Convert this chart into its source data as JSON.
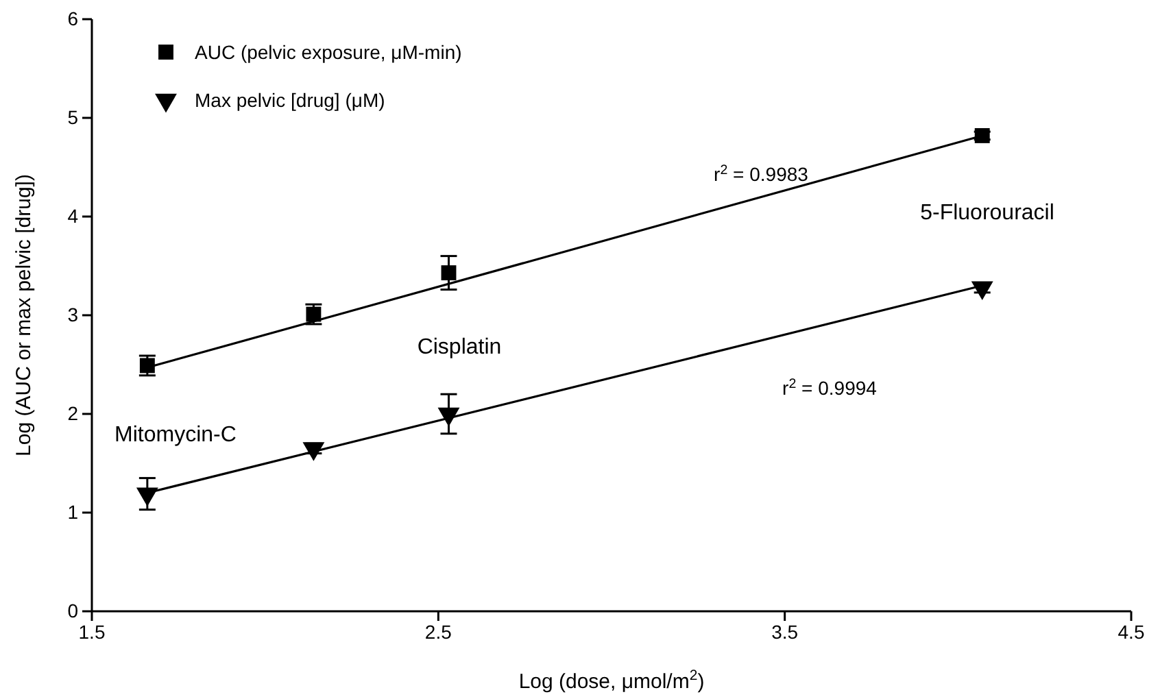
{
  "chart_data": {
    "type": "scatter",
    "xlabel": "Log (dose, μmol/m$^{2}$)",
    "ylabel": "Log (AUC or max pelvic [drug])",
    "xlim": [
      1.5,
      4.5
    ],
    "xticks": [
      1.5,
      2.5,
      3.5,
      4.5
    ],
    "ylim": [
      0,
      6
    ],
    "yticks": [
      0,
      1,
      2,
      3,
      4,
      5,
      6
    ],
    "grid": false,
    "legend": "top left",
    "series": [
      {
        "name": "AUC (pelvic exposure, μM-min)",
        "color": "#000000",
        "marker": "square",
        "x": [
          1.66,
          2.14,
          2.53,
          4.07
        ],
        "values": [
          2.49,
          3.01,
          3.43,
          4.82
        ],
        "errors": [
          0.1,
          0.1,
          0.17,
          0.04
        ]
      },
      {
        "name": "Max pelvic [drug] (μM)",
        "color": "#000000",
        "marker": "triangle",
        "x": [
          1.66,
          2.14,
          2.53,
          4.07
        ],
        "values": [
          1.19,
          1.65,
          2.0,
          3.28
        ],
        "errors": [
          0.16,
          0.05,
          0.2,
          0.05
        ]
      },
      {
        "type": "line",
        "color": "#000000",
        "marker": "none",
        "line_style": "solid",
        "x": [
          1.66,
          4.07
        ],
        "values": [
          2.47,
          4.82
        ]
      },
      {
        "type": "line",
        "color": "#000000",
        "marker": "none",
        "line_style": "solid",
        "x": [
          1.66,
          4.07
        ],
        "values": [
          1.2,
          3.3
        ]
      }
    ],
    "annotations": [
      "Mitomycin-C",
      "Cisplatin",
      "5-Fluorouracil",
      "r$^{2}$ = 0.9983",
      "r$^{2}$ = 0.9994"
    ]
  }
}
